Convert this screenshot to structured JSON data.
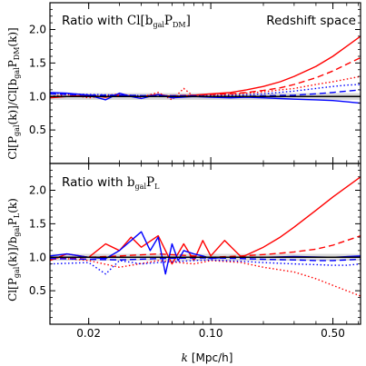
{
  "figure": {
    "x_axis": {
      "label": "k [Mpc/h]",
      "label_prefix": "k",
      "label_units": "[Mpc/h]",
      "scale": "log",
      "range": [
        0.012,
        0.72
      ],
      "ticks": [
        0.02,
        0.1,
        0.5
      ],
      "tick_labels": [
        "0.02",
        "0.10",
        "0.50"
      ]
    },
    "colors": {
      "red": "#ff0000",
      "blue": "#0000ff",
      "band": "#d9d9d9",
      "reference": "#000000"
    }
  },
  "panels": [
    {
      "id": "top",
      "title_left": "Ratio with Cl[b_gal P_DM]",
      "title_left_plain": "Ratio with ",
      "title_left_math": "Cl[b",
      "title_left_math_sub": "gal",
      "title_left_math_2": "P",
      "title_left_math_sub2": "DM",
      "title_left_math_3": "]",
      "title_right": "Redshift space",
      "ylabel": "Cl[P_gal(k)]/Cl[b_gal P_DM(k)]",
      "ylabel_parts": {
        "a": "Cl[P",
        "a_sub": "gal",
        "b": "(k)]/Cl[b",
        "b_sub": "gal",
        "c": "P",
        "c_sub": "DM",
        "d": "(k)]"
      }
    },
    {
      "id": "bottom",
      "title_left": "Ratio with b_gal P_L",
      "title_left_plain": "Ratio with ",
      "title_left_math": "b",
      "title_left_math_sub": "gal",
      "title_left_math_2": "P",
      "title_left_math_sub2": "L",
      "title_left_math_3": "",
      "title_right": "",
      "ylabel": "Cl[P_gal(k)]/b_gal P_L(k)",
      "ylabel_parts": {
        "a": "Cl[P",
        "a_sub": "gal",
        "b": "(k)]/b",
        "b_sub": "gal",
        "c": "P",
        "c_sub": "L",
        "d": "(k)"
      }
    }
  ],
  "chart_data": [
    {
      "type": "line",
      "panel": "top",
      "xscale": "log",
      "xlim": [
        0.012,
        0.72
      ],
      "ylim": [
        0.0,
        2.4
      ],
      "yticks": [
        0.5,
        1.0,
        1.5,
        2.0
      ],
      "ytick_labels": [
        "0.5",
        "1.0",
        "1.5",
        "2.0"
      ],
      "reference_line": 1.0,
      "band": [
        0.95,
        1.05
      ],
      "series": [
        {
          "color": "red",
          "style": "solid",
          "x": [
            0.012,
            0.015,
            0.02,
            0.025,
            0.03,
            0.04,
            0.05,
            0.06,
            0.08,
            0.1,
            0.13,
            0.16,
            0.2,
            0.25,
            0.3,
            0.4,
            0.5,
            0.6,
            0.72
          ],
          "y": [
            0.98,
            1.0,
            1.02,
            0.99,
            1.02,
            1.0,
            1.03,
            1.0,
            1.02,
            1.04,
            1.06,
            1.1,
            1.15,
            1.22,
            1.3,
            1.45,
            1.6,
            1.75,
            1.9
          ]
        },
        {
          "color": "red",
          "style": "dashed",
          "x": [
            0.012,
            0.02,
            0.03,
            0.05,
            0.08,
            0.1,
            0.13,
            0.16,
            0.2,
            0.25,
            0.3,
            0.4,
            0.5,
            0.6,
            0.72
          ],
          "y": [
            0.99,
            1.02,
            1.0,
            1.01,
            1.02,
            1.03,
            1.04,
            1.06,
            1.09,
            1.13,
            1.18,
            1.28,
            1.38,
            1.48,
            1.58
          ]
        },
        {
          "color": "red",
          "style": "dotted",
          "x": [
            0.012,
            0.015,
            0.02,
            0.03,
            0.04,
            0.05,
            0.06,
            0.07,
            0.08,
            0.1,
            0.13,
            0.16,
            0.2,
            0.25,
            0.3,
            0.4,
            0.5,
            0.6,
            0.72
          ],
          "y": [
            1.0,
            1.03,
            0.98,
            1.04,
            0.99,
            1.06,
            0.95,
            1.12,
            1.0,
            1.02,
            1.03,
            1.05,
            1.07,
            1.1,
            1.12,
            1.18,
            1.22,
            1.26,
            1.3
          ]
        },
        {
          "color": "blue",
          "style": "solid",
          "x": [
            0.012,
            0.015,
            0.02,
            0.025,
            0.03,
            0.035,
            0.04,
            0.05,
            0.06,
            0.08,
            0.1,
            0.13,
            0.16,
            0.2,
            0.25,
            0.3,
            0.4,
            0.5,
            0.6,
            0.72
          ],
          "y": [
            1.06,
            1.05,
            1.02,
            0.95,
            1.05,
            1.0,
            0.97,
            1.03,
            0.98,
            1.0,
            0.99,
            0.98,
            0.99,
            0.98,
            0.97,
            0.96,
            0.95,
            0.94,
            0.92,
            0.9
          ]
        },
        {
          "color": "blue",
          "style": "dashed",
          "x": [
            0.012,
            0.02,
            0.03,
            0.05,
            0.08,
            0.1,
            0.15,
            0.2,
            0.3,
            0.4,
            0.5,
            0.6,
            0.72
          ],
          "y": [
            1.04,
            1.02,
            1.02,
            1.01,
            1.01,
            1.0,
            1.0,
            1.01,
            1.02,
            1.04,
            1.06,
            1.08,
            1.1
          ]
        },
        {
          "color": "blue",
          "style": "dotted",
          "x": [
            0.012,
            0.02,
            0.03,
            0.05,
            0.08,
            0.1,
            0.15,
            0.2,
            0.3,
            0.4,
            0.5,
            0.6,
            0.72
          ],
          "y": [
            1.05,
            1.03,
            1.02,
            1.01,
            1.01,
            1.01,
            1.02,
            1.04,
            1.08,
            1.12,
            1.15,
            1.17,
            1.18
          ]
        }
      ]
    },
    {
      "type": "line",
      "panel": "bottom",
      "xscale": "log",
      "xlim": [
        0.012,
        0.72
      ],
      "ylim": [
        0.0,
        2.4
      ],
      "yticks": [
        0.5,
        1.0,
        1.5,
        2.0
      ],
      "ytick_labels": [
        "0.5",
        "1.0",
        "1.5",
        "2.0"
      ],
      "reference_line": 1.0,
      "band": [
        0.95,
        1.05
      ],
      "series": [
        {
          "color": "red",
          "style": "solid",
          "x": [
            0.012,
            0.015,
            0.02,
            0.025,
            0.03,
            0.035,
            0.04,
            0.05,
            0.06,
            0.07,
            0.08,
            0.09,
            0.1,
            0.12,
            0.15,
            0.2,
            0.25,
            0.3,
            0.4,
            0.5,
            0.6,
            0.72
          ],
          "y": [
            0.95,
            1.05,
            1.0,
            1.2,
            1.1,
            1.3,
            1.15,
            1.32,
            0.9,
            1.2,
            0.95,
            1.25,
            1.02,
            1.25,
            1.0,
            1.15,
            1.3,
            1.45,
            1.7,
            1.9,
            2.05,
            2.2
          ]
        },
        {
          "color": "red",
          "style": "dashed",
          "x": [
            0.012,
            0.02,
            0.03,
            0.05,
            0.08,
            0.1,
            0.15,
            0.2,
            0.25,
            0.3,
            0.4,
            0.5,
            0.6,
            0.72
          ],
          "y": [
            0.97,
            1.0,
            1.02,
            1.05,
            1.02,
            1.0,
            1.02,
            1.04,
            1.06,
            1.08,
            1.12,
            1.18,
            1.25,
            1.32
          ]
        },
        {
          "color": "red",
          "style": "dotted",
          "x": [
            0.012,
            0.02,
            0.03,
            0.05,
            0.08,
            0.1,
            0.15,
            0.2,
            0.3,
            0.4,
            0.5,
            0.6,
            0.72
          ],
          "y": [
            1.0,
            0.95,
            0.85,
            0.95,
            0.9,
            0.95,
            0.92,
            0.85,
            0.78,
            0.68,
            0.58,
            0.5,
            0.42
          ]
        },
        {
          "color": "blue",
          "style": "solid",
          "x": [
            0.012,
            0.015,
            0.02,
            0.025,
            0.03,
            0.035,
            0.04,
            0.045,
            0.05,
            0.055,
            0.06,
            0.065,
            0.07,
            0.08,
            0.09,
            0.1,
            0.12,
            0.15,
            0.2,
            0.3,
            0.5,
            0.72
          ],
          "y": [
            1.02,
            1.05,
            1.0,
            0.98,
            1.1,
            1.25,
            1.38,
            1.1,
            1.3,
            0.75,
            1.2,
            0.95,
            1.1,
            1.05,
            1.02,
            0.98,
            1.0,
            1.0,
            1.0,
            1.01,
            1.0,
            1.02
          ]
        },
        {
          "color": "blue",
          "style": "dashed",
          "x": [
            0.012,
            0.02,
            0.03,
            0.05,
            0.08,
            0.1,
            0.15,
            0.2,
            0.3,
            0.4,
            0.5,
            0.6,
            0.72
          ],
          "y": [
            0.98,
            0.97,
            0.96,
            0.98,
            0.99,
            0.99,
            0.98,
            0.97,
            0.96,
            0.95,
            0.95,
            0.96,
            0.97
          ]
        },
        {
          "color": "blue",
          "style": "dotted",
          "x": [
            0.012,
            0.02,
            0.025,
            0.03,
            0.04,
            0.05,
            0.08,
            0.1,
            0.15,
            0.2,
            0.3,
            0.4,
            0.5,
            0.6,
            0.72
          ],
          "y": [
            0.9,
            0.92,
            0.75,
            0.95,
            0.9,
            0.92,
            0.95,
            0.96,
            0.94,
            0.92,
            0.9,
            0.89,
            0.88,
            0.88,
            0.9
          ]
        }
      ]
    }
  ]
}
